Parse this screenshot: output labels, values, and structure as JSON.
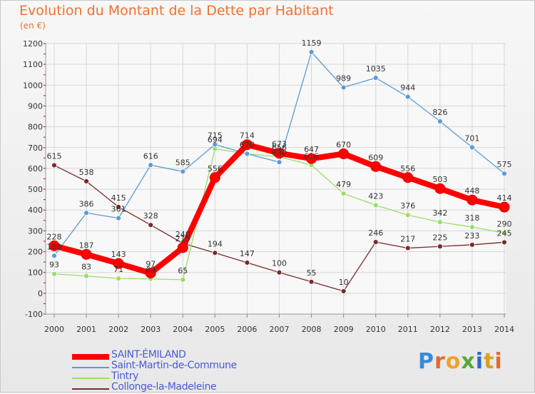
{
  "title": "Evolution du Montant de la Dette par Habitant",
  "subtitle": "(en €)",
  "logo": {
    "text": "Proxiti",
    "colors": [
      "#3a8ad8",
      "#e46a2a",
      "#f0a030",
      "#5aa83a",
      "#2a6ac8",
      "#d8a020",
      "#e46a2a"
    ]
  },
  "chart_data": {
    "type": "line",
    "x": [
      "2000",
      "2001",
      "2002",
      "2003",
      "2004",
      "2005",
      "2006",
      "2007",
      "2008",
      "2009",
      "2010",
      "2011",
      "2012",
      "2013",
      "2014"
    ],
    "ylim": [
      -100,
      1200
    ],
    "yticks": [
      -100,
      0,
      100,
      200,
      300,
      400,
      500,
      600,
      700,
      800,
      900,
      1000,
      1100,
      1200
    ],
    "grid": true,
    "legend": "bottom",
    "series": [
      {
        "name": "SAINT-ÉMILAND",
        "color": "#ff0000",
        "values": [
          228,
          187,
          143,
          97,
          219,
          556,
          714,
          673,
          647,
          670,
          609,
          556,
          503,
          448,
          414
        ],
        "labels": [
          "228",
          "187",
          "143",
          "97",
          "219",
          "556",
          "714",
          "673",
          "647",
          "670",
          "609",
          "556",
          "503",
          "448",
          "414"
        ]
      },
      {
        "name": "Saint-Martin-de-Commune",
        "color": "#5b9bd5",
        "values": [
          180,
          386,
          361,
          616,
          585,
          715,
          670,
          630,
          1159,
          989,
          1035,
          944,
          826,
          701,
          575
        ],
        "labels": [
          "180",
          "386",
          "361",
          "616",
          "585",
          "715",
          "670",
          "630",
          "1159",
          "989",
          "1035",
          "944",
          "826",
          "701",
          "575"
        ]
      },
      {
        "name": "Tintry",
        "color": "#99dd66",
        "values": [
          93,
          83,
          71,
          69,
          65,
          694,
          670,
          656,
          616,
          479,
          423,
          376,
          342,
          318,
          290
        ],
        "labels": [
          "93",
          "83",
          "71",
          "69",
          "65",
          "694",
          "670",
          "656",
          "616",
          "479",
          "423",
          "376",
          "342",
          "318",
          "290"
        ]
      },
      {
        "name": "Collonge-la-Madeleine",
        "color": "#7a2a2a",
        "values": [
          615,
          538,
          415,
          328,
          240,
          194,
          147,
          100,
          55,
          10,
          246,
          217,
          225,
          233,
          245
        ],
        "labels": [
          "615",
          "538",
          "415",
          "328",
          "240",
          "194",
          "147",
          "100",
          "55",
          "10",
          "246",
          "217",
          "225",
          "233",
          "245"
        ]
      }
    ]
  }
}
